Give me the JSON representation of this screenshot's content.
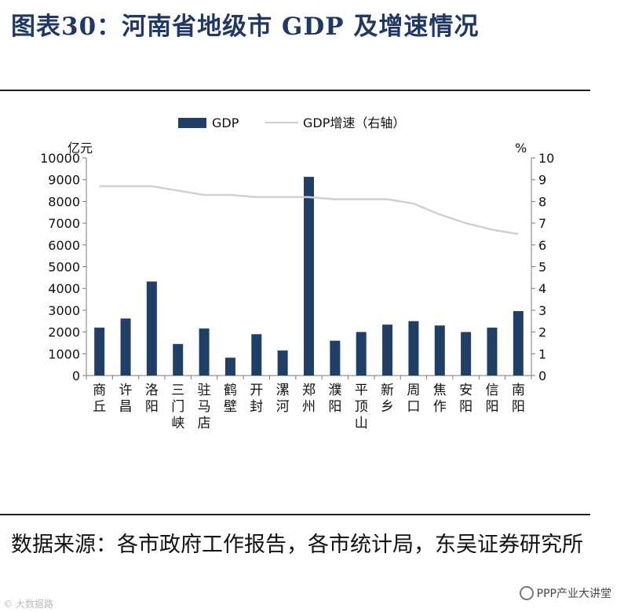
{
  "header": {
    "title": "图表30：河南省地级市 GDP 及增速情况"
  },
  "source_note": "数据来源：各市政府工作报告，各市统计局，东吴证券研究所",
  "watermark": {
    "right_text": "PPP产业大讲堂",
    "left_text": "© 大数据路"
  },
  "colors": {
    "bar": "#1f3f66",
    "line": "#d0d0d0",
    "title": "#1f3864"
  },
  "chart_data": {
    "type": "bar",
    "categories": [
      "商丘",
      "许昌",
      "洛阳",
      "三门峡",
      "驻马店",
      "鹤壁",
      "开封",
      "漯河",
      "郑州",
      "濮阳",
      "平顶山",
      "新乡",
      "周口",
      "焦作",
      "安阳",
      "信阳",
      "南阳"
    ],
    "series": [
      {
        "name": "GDP",
        "type": "bar",
        "axis": "left",
        "values": [
          2200,
          2620,
          4320,
          1450,
          2160,
          820,
          1900,
          1150,
          9130,
          1600,
          2000,
          2340,
          2500,
          2300,
          2000,
          2200,
          2960
        ]
      },
      {
        "name": "GDP增速（右轴）",
        "type": "line",
        "axis": "right",
        "values": [
          8.7,
          8.7,
          8.7,
          8.5,
          8.3,
          8.3,
          8.2,
          8.2,
          8.2,
          8.1,
          8.1,
          8.1,
          7.9,
          7.4,
          7.0,
          6.7,
          6.5
        ]
      }
    ],
    "ylabel_left": "亿元",
    "ylabel_right": "%",
    "ylim_left": [
      0,
      10000
    ],
    "ylim_right": [
      0,
      10
    ],
    "yticks_left": [
      0,
      1000,
      2000,
      3000,
      4000,
      5000,
      6000,
      7000,
      8000,
      9000,
      10000
    ],
    "yticks_right": [
      0,
      1,
      2,
      3,
      4,
      5,
      6,
      7,
      8,
      9,
      10
    ],
    "legend": [
      "GDP",
      "GDP增速（右轴）"
    ],
    "legend_position": "top-center",
    "grid": false
  }
}
